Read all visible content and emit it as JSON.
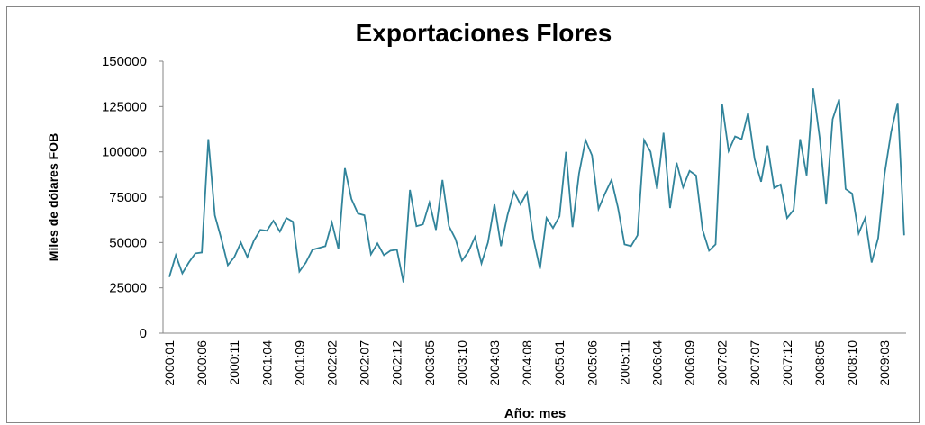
{
  "chart_data": {
    "type": "line",
    "title": "Exportaciones Flores",
    "y_label": "Miles de dólares FOB",
    "x_label": "Año: mes",
    "categories": [
      "2000:01",
      null,
      null,
      null,
      null,
      "2000:06",
      null,
      null,
      null,
      null,
      "2000:11",
      null,
      null,
      null,
      null,
      "2001:04",
      null,
      null,
      null,
      null,
      "2001:09",
      null,
      null,
      null,
      null,
      "2002:02",
      null,
      null,
      null,
      null,
      "2002:07",
      null,
      null,
      null,
      null,
      "2002:12",
      null,
      null,
      null,
      null,
      "2003:05",
      null,
      null,
      null,
      null,
      "2003:10",
      null,
      null,
      null,
      null,
      "2004:03",
      null,
      null,
      null,
      null,
      "2004:08",
      null,
      null,
      null,
      null,
      "2005:01",
      null,
      null,
      null,
      null,
      "2005:06",
      null,
      null,
      null,
      null,
      "2005:11",
      null,
      null,
      null,
      null,
      "2006:04",
      null,
      null,
      null,
      null,
      "2006:09",
      null,
      null,
      null,
      null,
      "2007:02",
      null,
      null,
      null,
      null,
      "2007:07",
      null,
      null,
      null,
      null,
      "2007:12",
      null,
      null,
      null,
      null,
      "2008:05",
      null,
      null,
      null,
      null,
      "2008:10",
      null,
      null,
      null,
      null,
      "2009:03",
      null,
      null,
      null
    ],
    "values": [
      31000,
      43000,
      33000,
      39000,
      44000,
      44500,
      107000,
      65000,
      52000,
      37500,
      42000,
      50000,
      42000,
      51000,
      57000,
      56500,
      62000,
      56000,
      63500,
      61500,
      34000,
      39000,
      46000,
      47000,
      48000,
      61000,
      46500,
      91000,
      74000,
      66000,
      65000,
      43500,
      49500,
      43000,
      45500,
      46000,
      28000,
      79000,
      59000,
      60000,
      72000,
      57000,
      84500,
      59000,
      52000,
      40000,
      45000,
      53000,
      38500,
      50000,
      71000,
      48000,
      65000,
      78000,
      71000,
      77500,
      52000,
      35500,
      63500,
      58000,
      64500,
      100000,
      58500,
      88000,
      106500,
      98000,
      68500,
      77000,
      84500,
      69000,
      49000,
      48000,
      54000,
      106500,
      100000,
      79500,
      110500,
      69000,
      94000,
      80500,
      89500,
      87000,
      57000,
      45500,
      49000,
      126500,
      100500,
      108500,
      107000,
      121500,
      96000,
      83500,
      103500,
      80000,
      82000,
      63500,
      68000,
      107000,
      87000,
      135000,
      108000,
      71000,
      118000,
      129000,
      79500,
      77000,
      55000,
      63500,
      39000,
      52500,
      88000,
      111000,
      127000,
      54000
    ],
    "color": "#31849b",
    "ylim": [
      0,
      150000
    ],
    "yticks": [
      0,
      25000,
      50000,
      75000,
      100000,
      125000,
      150000
    ],
    "grid": false
  }
}
